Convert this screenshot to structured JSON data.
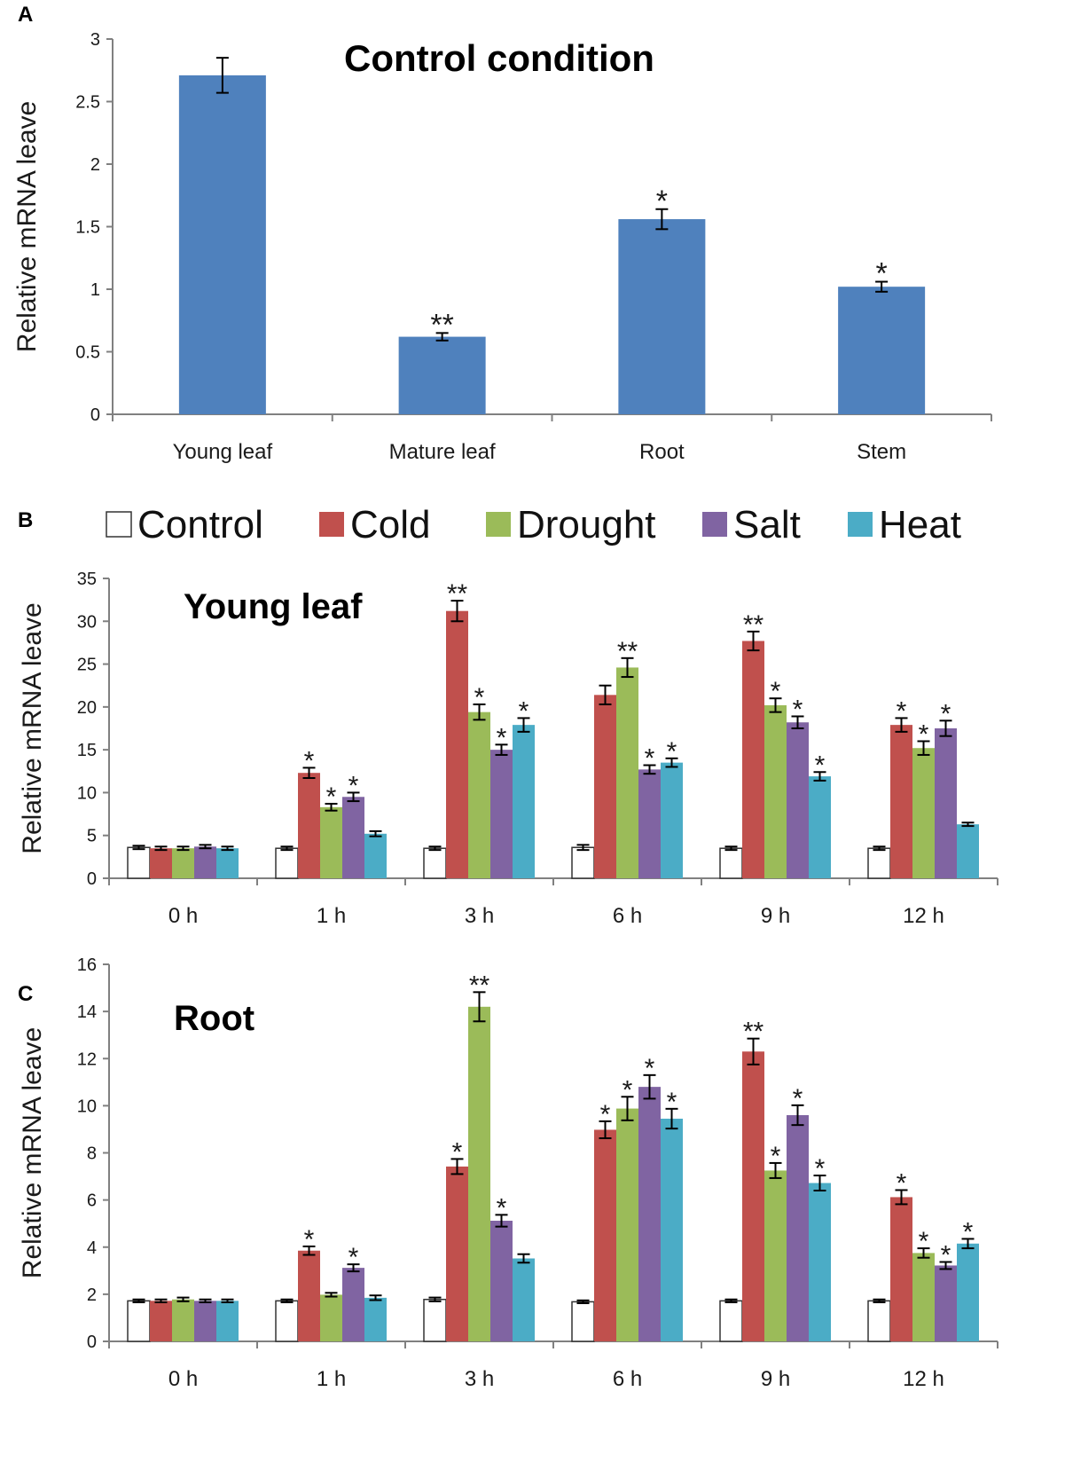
{
  "legend": [
    {
      "name": "Control",
      "color": "#ffffff"
    },
    {
      "name": "Cold",
      "color": "#c0504d"
    },
    {
      "name": "Drought",
      "color": "#9bbb59"
    },
    {
      "name": "Salt",
      "color": "#8064a2"
    },
    {
      "name": "Heat",
      "color": "#4bacc6"
    }
  ],
  "chart_data": [
    {
      "panel": "A",
      "type": "bar",
      "title": "Control condition",
      "ylabel": "Relative mRNA leave",
      "xlabel": "",
      "ylim": [
        0,
        3
      ],
      "yticks": [
        "0",
        "0.5",
        "1",
        "1.5",
        "2",
        "2.5",
        "3"
      ],
      "categories": [
        "Young leaf",
        "Mature leaf",
        "Root",
        "Stem"
      ],
      "series": [
        {
          "name": "Control condition",
          "color": "#4f81bd",
          "values": [
            2.71,
            0.62,
            1.56,
            1.02
          ],
          "errors": [
            0.14,
            0.03,
            0.08,
            0.04
          ],
          "marks": [
            "",
            "**",
            "*",
            "*"
          ]
        }
      ]
    },
    {
      "panel": "B",
      "type": "bar",
      "title": "Young leaf",
      "ylabel": "Relative mRNA leave",
      "xlabel": "",
      "ylim": [
        0,
        35
      ],
      "yticks": [
        "0",
        "5",
        "10",
        "15",
        "20",
        "25",
        "30",
        "35"
      ],
      "categories": [
        "0 h",
        "1 h",
        "3 h",
        "6 h",
        "9 h",
        "12 h"
      ],
      "series": [
        {
          "name": "Control",
          "color": "#ffffff",
          "values": [
            3.6,
            3.5,
            3.5,
            3.6,
            3.5,
            3.5
          ],
          "errors": [
            0.2,
            0.2,
            0.2,
            0.3,
            0.2,
            0.2
          ],
          "marks": [
            "",
            "",
            "",
            "",
            "",
            ""
          ]
        },
        {
          "name": "Cold",
          "color": "#c0504d",
          "values": [
            3.5,
            12.3,
            31.2,
            21.4,
            27.7,
            17.9
          ],
          "errors": [
            0.2,
            0.6,
            1.2,
            1.1,
            1.1,
            0.8
          ],
          "marks": [
            "",
            "*",
            "**",
            "",
            "**",
            "*"
          ]
        },
        {
          "name": "Drought",
          "color": "#9bbb59",
          "values": [
            3.5,
            8.3,
            19.4,
            24.6,
            20.2,
            15.2
          ],
          "errors": [
            0.2,
            0.4,
            0.9,
            1.1,
            0.8,
            0.8
          ],
          "marks": [
            "",
            "*",
            "*",
            "**",
            "*",
            "*"
          ]
        },
        {
          "name": "Salt",
          "color": "#8064a2",
          "values": [
            3.7,
            9.5,
            15.0,
            12.7,
            18.2,
            17.5
          ],
          "errors": [
            0.2,
            0.5,
            0.6,
            0.5,
            0.7,
            0.9
          ],
          "marks": [
            "",
            "*",
            "*",
            "*",
            "*",
            "*"
          ]
        },
        {
          "name": "Heat",
          "color": "#4bacc6",
          "values": [
            3.5,
            5.2,
            17.9,
            13.5,
            11.9,
            6.3
          ],
          "errors": [
            0.2,
            0.3,
            0.8,
            0.5,
            0.5,
            0.2
          ],
          "marks": [
            "",
            "",
            "*",
            "*",
            "*",
            ""
          ]
        }
      ]
    },
    {
      "panel": "C",
      "type": "bar",
      "title": "Root",
      "ylabel": "Relative mRNA leave",
      "xlabel": "",
      "ylim": [
        0,
        16
      ],
      "yticks": [
        "0",
        "2",
        "4",
        "6",
        "8",
        "10",
        "12",
        "14",
        "16"
      ],
      "categories": [
        "0 h",
        "1 h",
        "3 h",
        "6 h",
        "9 h",
        "12 h"
      ],
      "series": [
        {
          "name": "Control",
          "color": "#ffffff",
          "values": [
            1.72,
            1.72,
            1.78,
            1.68,
            1.72,
            1.72
          ],
          "errors": [
            0.06,
            0.06,
            0.08,
            0.06,
            0.06,
            0.06
          ],
          "marks": [
            "",
            "",
            "",
            "",
            "",
            ""
          ]
        },
        {
          "name": "Cold",
          "color": "#c0504d",
          "values": [
            1.72,
            3.85,
            7.42,
            8.98,
            12.3,
            6.12
          ],
          "errors": [
            0.06,
            0.18,
            0.32,
            0.36,
            0.55,
            0.3
          ],
          "marks": [
            "",
            "*",
            "*",
            "*",
            "**",
            "*"
          ]
        },
        {
          "name": "Drought",
          "color": "#9bbb59",
          "values": [
            1.78,
            1.98,
            14.2,
            9.88,
            7.25,
            3.75
          ],
          "errors": [
            0.08,
            0.08,
            0.62,
            0.5,
            0.32,
            0.2
          ],
          "marks": [
            "",
            "",
            "**",
            "*",
            "*",
            "*"
          ]
        },
        {
          "name": "Salt",
          "color": "#8064a2",
          "values": [
            1.72,
            3.12,
            5.12,
            10.8,
            9.6,
            3.22
          ],
          "errors": [
            0.06,
            0.15,
            0.25,
            0.5,
            0.42,
            0.15
          ],
          "marks": [
            "",
            "*",
            "*",
            "*",
            "*",
            "*"
          ]
        },
        {
          "name": "Heat",
          "color": "#4bacc6",
          "values": [
            1.72,
            1.85,
            3.52,
            9.45,
            6.72,
            4.15
          ],
          "errors": [
            0.06,
            0.1,
            0.18,
            0.42,
            0.32,
            0.2
          ],
          "marks": [
            "",
            "",
            "",
            "*",
            "*",
            "*"
          ]
        }
      ]
    }
  ]
}
